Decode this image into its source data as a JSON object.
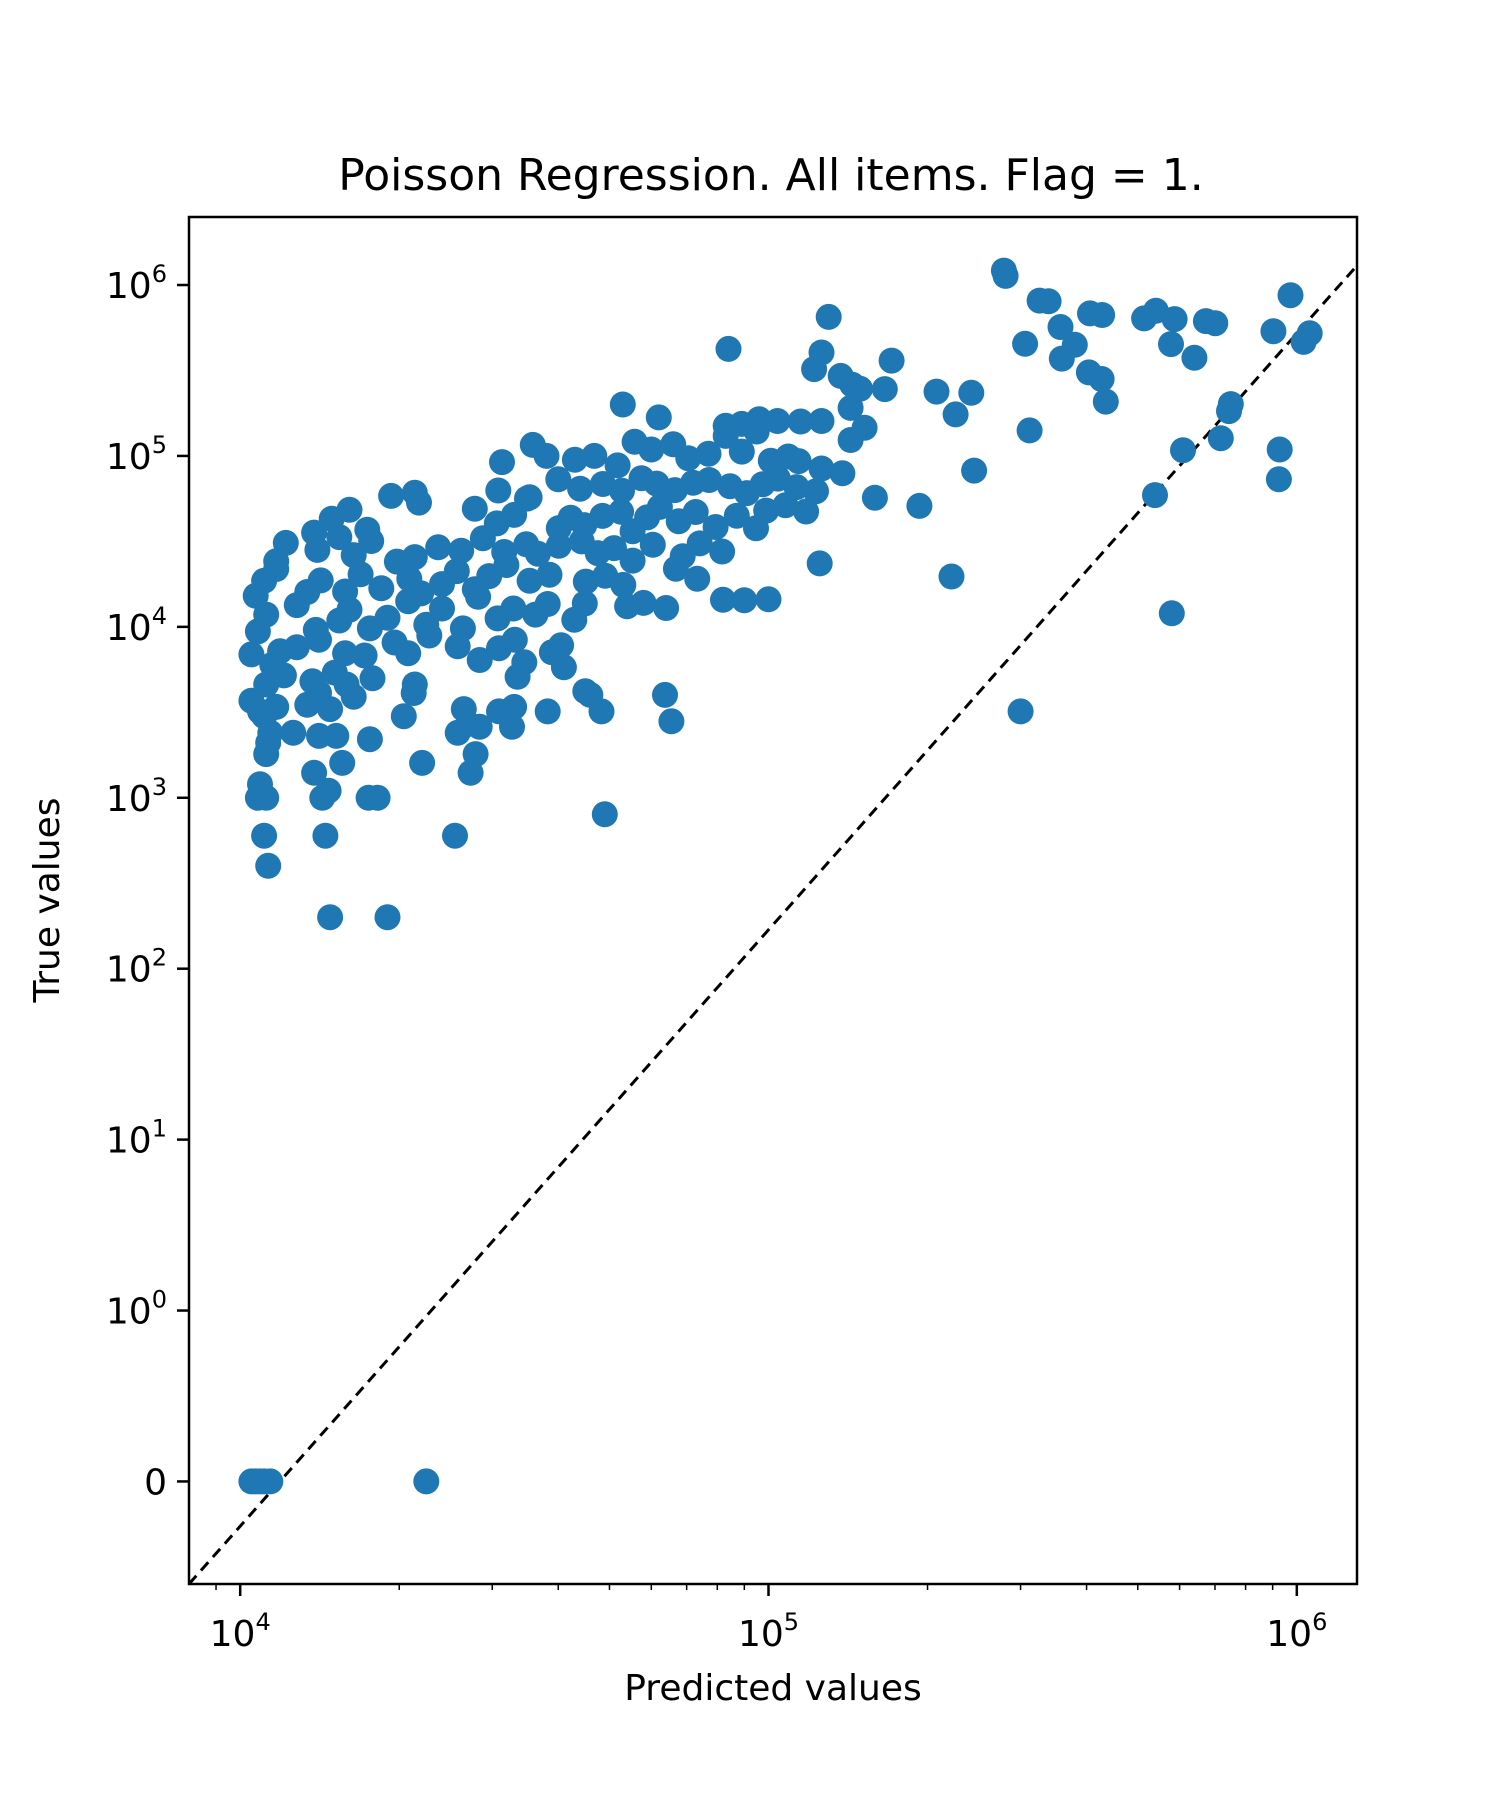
{
  "chart_data": {
    "type": "scatter",
    "title": "Poisson Regression. All items. Flag = 1.",
    "xlabel": "Predicted values",
    "ylabel": "True values",
    "xscale": "log",
    "yscale": "symlog",
    "xlim": [
      8000,
      1300000
    ],
    "ylim": [
      -0.6,
      2500000
    ],
    "x_ticks": [
      {
        "value": 10000,
        "base": "10",
        "exp": "4"
      },
      {
        "value": 100000,
        "base": "10",
        "exp": "5"
      },
      {
        "value": 1000000,
        "base": "10",
        "exp": "6"
      }
    ],
    "y_ticks": [
      {
        "value": 0,
        "base": "0",
        "exp": ""
      },
      {
        "value": 1,
        "base": "10",
        "exp": "0"
      },
      {
        "value": 10,
        "base": "10",
        "exp": "1"
      },
      {
        "value": 100,
        "base": "10",
        "exp": "2"
      },
      {
        "value": 1000,
        "base": "10",
        "exp": "3"
      },
      {
        "value": 10000,
        "base": "10",
        "exp": "4"
      },
      {
        "value": 100000,
        "base": "10",
        "exp": "5"
      },
      {
        "value": 1000000,
        "base": "10",
        "exp": "6"
      }
    ],
    "reference_line": {
      "style": "dashed",
      "color": "#000000",
      "description": "y = x"
    },
    "marker_color": "#1f77b4",
    "grid": false,
    "points": [
      [
        10500,
        0
      ],
      [
        10700,
        0
      ],
      [
        10900,
        0
      ],
      [
        11100,
        0
      ],
      [
        11400,
        0
      ],
      [
        22500,
        0
      ],
      [
        11300,
        400
      ],
      [
        14800,
        200
      ],
      [
        19000,
        200
      ],
      [
        11100,
        600
      ],
      [
        14500,
        600
      ],
      [
        25500,
        600
      ],
      [
        49000,
        800
      ],
      [
        10800,
        1000
      ],
      [
        10900,
        1200
      ],
      [
        11200,
        1000
      ],
      [
        14300,
        1000
      ],
      [
        14700,
        1100
      ],
      [
        17500,
        1000
      ],
      [
        18200,
        1000
      ],
      [
        13800,
        1400
      ],
      [
        15600,
        1600
      ],
      [
        22100,
        1600
      ],
      [
        27300,
        1400
      ],
      [
        27900,
        1800
      ],
      [
        11200,
        1800
      ],
      [
        11300,
        2100
      ],
      [
        11400,
        2400
      ],
      [
        12600,
        2400
      ],
      [
        14100,
        2300
      ],
      [
        15200,
        2300
      ],
      [
        17600,
        2200
      ],
      [
        20400,
        3000
      ],
      [
        25800,
        2400
      ],
      [
        27000,
        2700
      ],
      [
        11100,
        3000
      ],
      [
        10500,
        3700
      ],
      [
        10900,
        3200
      ],
      [
        11700,
        3400
      ],
      [
        13400,
        3500
      ],
      [
        14100,
        4100
      ],
      [
        14800,
        3300
      ],
      [
        16400,
        3900
      ],
      [
        21300,
        4100
      ],
      [
        26500,
        3300
      ],
      [
        28400,
        2600
      ],
      [
        30900,
        3200
      ],
      [
        32700,
        2600
      ],
      [
        33000,
        3400
      ],
      [
        38200,
        3200
      ],
      [
        48300,
        3200
      ],
      [
        65500,
        2800
      ],
      [
        63700,
        4000
      ],
      [
        300000,
        3200
      ],
      [
        11200,
        4600
      ],
      [
        12100,
        5200
      ],
      [
        13700,
        4800
      ],
      [
        15100,
        5400
      ],
      [
        15900,
        4600
      ],
      [
        17800,
        5000
      ],
      [
        21400,
        4600
      ],
      [
        28400,
        6400
      ],
      [
        33500,
        5100
      ],
      [
        34500,
        6200
      ],
      [
        41000,
        5800
      ],
      [
        45000,
        4200
      ],
      [
        46000,
        4000
      ],
      [
        10500,
        6900
      ],
      [
        11500,
        6000
      ],
      [
        11900,
        7200
      ],
      [
        12800,
        7600
      ],
      [
        14100,
        8400
      ],
      [
        15800,
        7000
      ],
      [
        17200,
        6800
      ],
      [
        19600,
        8100
      ],
      [
        20800,
        7000
      ],
      [
        22800,
        8900
      ],
      [
        25800,
        7700
      ],
      [
        30900,
        7500
      ],
      [
        33100,
        8400
      ],
      [
        38900,
        7100
      ],
      [
        40500,
        7800
      ],
      [
        10800,
        9400
      ],
      [
        11200,
        11800
      ],
      [
        12800,
        13400
      ],
      [
        13900,
        9600
      ],
      [
        15400,
        10900
      ],
      [
        16100,
        12600
      ],
      [
        17600,
        9800
      ],
      [
        19000,
        11300
      ],
      [
        20800,
        14100
      ],
      [
        22500,
        10300
      ],
      [
        24100,
        12800
      ],
      [
        26400,
        9800
      ],
      [
        28200,
        15000
      ],
      [
        30700,
        11200
      ],
      [
        32900,
        12800
      ],
      [
        36200,
        11800
      ],
      [
        38200,
        13600
      ],
      [
        42900,
        11000
      ],
      [
        44900,
        13700
      ],
      [
        54000,
        13200
      ],
      [
        58000,
        13800
      ],
      [
        64000,
        12900
      ],
      [
        82000,
        14400
      ],
      [
        90000,
        14300
      ],
      [
        100000,
        14500
      ],
      [
        580000,
        12000
      ],
      [
        10700,
        15200
      ],
      [
        11100,
        18600
      ],
      [
        11700,
        21800
      ],
      [
        13400,
        16000
      ],
      [
        14200,
        18700
      ],
      [
        15800,
        16100
      ],
      [
        16900,
        20300
      ],
      [
        18500,
        16800
      ],
      [
        20900,
        19100
      ],
      [
        22000,
        15700
      ],
      [
        24100,
        17800
      ],
      [
        25700,
        21200
      ],
      [
        27800,
        16600
      ],
      [
        29600,
        19800
      ],
      [
        31900,
        23000
      ],
      [
        35300,
        18600
      ],
      [
        38500,
        20200
      ],
      [
        45100,
        18400
      ],
      [
        49100,
        19900
      ],
      [
        53100,
        17600
      ],
      [
        66800,
        21900
      ],
      [
        73300,
        19100
      ],
      [
        125000,
        23500
      ],
      [
        222000,
        19700
      ],
      [
        11700,
        24200
      ],
      [
        12200,
        31000
      ],
      [
        14000,
        28200
      ],
      [
        15400,
        33500
      ],
      [
        16400,
        26300
      ],
      [
        17700,
        31800
      ],
      [
        19800,
        24100
      ],
      [
        21400,
        25600
      ],
      [
        23700,
        29200
      ],
      [
        26200,
        27900
      ],
      [
        28800,
        33000
      ],
      [
        31600,
        27400
      ],
      [
        34800,
        30400
      ],
      [
        36600,
        26800
      ],
      [
        40100,
        29800
      ],
      [
        44300,
        31600
      ],
      [
        47500,
        27000
      ],
      [
        51000,
        28900
      ],
      [
        55300,
        24400
      ],
      [
        60400,
        30200
      ],
      [
        68800,
        25900
      ],
      [
        74100,
        30800
      ],
      [
        81700,
        27600
      ],
      [
        13800,
        35600
      ],
      [
        14900,
        42900
      ],
      [
        16100,
        48400
      ],
      [
        17400,
        37000
      ],
      [
        19300,
        58400
      ],
      [
        21400,
        60900
      ],
      [
        21800,
        53300
      ],
      [
        27800,
        49100
      ],
      [
        30600,
        40300
      ],
      [
        33000,
        45200
      ],
      [
        35300,
        57300
      ],
      [
        40100,
        37800
      ],
      [
        42200,
        43500
      ],
      [
        44800,
        39400
      ],
      [
        48500,
        44600
      ],
      [
        52600,
        47100
      ],
      [
        55300,
        36300
      ],
      [
        58900,
        43700
      ],
      [
        62300,
        50300
      ],
      [
        67600,
        41500
      ],
      [
        72800,
        47000
      ],
      [
        79400,
        38400
      ],
      [
        87100,
        44700
      ],
      [
        94700,
        37700
      ],
      [
        99000,
        47900
      ],
      [
        107700,
        51500
      ],
      [
        117800,
        47300
      ],
      [
        159000,
        57000
      ],
      [
        193000,
        51000
      ],
      [
        539000,
        59000
      ],
      [
        30800,
        62800
      ],
      [
        34900,
        56300
      ],
      [
        40000,
        73000
      ],
      [
        44000,
        64300
      ],
      [
        48600,
        68500
      ],
      [
        52800,
        62600
      ],
      [
        57500,
        74100
      ],
      [
        61400,
        68900
      ],
      [
        66500,
        63100
      ],
      [
        72000,
        69600
      ],
      [
        77200,
        72300
      ],
      [
        84600,
        66400
      ],
      [
        91000,
        60600
      ],
      [
        97500,
        68300
      ],
      [
        104200,
        73700
      ],
      [
        113000,
        65700
      ],
      [
        123000,
        62200
      ],
      [
        138000,
        79100
      ],
      [
        245000,
        82100
      ],
      [
        925000,
        73000
      ],
      [
        31300,
        92000
      ],
      [
        35800,
        116000
      ],
      [
        38000,
        100000
      ],
      [
        43000,
        95000
      ],
      [
        46800,
        100000
      ],
      [
        51800,
        88000
      ],
      [
        55800,
        121000
      ],
      [
        60000,
        109000
      ],
      [
        66000,
        117000
      ],
      [
        70500,
        97000
      ],
      [
        77000,
        103000
      ],
      [
        83000,
        131000
      ],
      [
        89000,
        106000
      ],
      [
        95000,
        139000
      ],
      [
        101000,
        93800
      ],
      [
        109000,
        99200
      ],
      [
        114000,
        93300
      ],
      [
        126000,
        84400
      ],
      [
        143000,
        124000
      ],
      [
        312000,
        141000
      ],
      [
        609000,
        108000
      ],
      [
        718000,
        127000
      ],
      [
        928000,
        109000
      ],
      [
        53000,
        200000
      ],
      [
        62000,
        168000
      ],
      [
        83000,
        150000
      ],
      [
        89000,
        154000
      ],
      [
        96000,
        164000
      ],
      [
        104000,
        160000
      ],
      [
        115000,
        159000
      ],
      [
        126000,
        160000
      ],
      [
        143000,
        191000
      ],
      [
        152000,
        146000
      ],
      [
        166000,
        246000
      ],
      [
        208000,
        238000
      ],
      [
        226000,
        175000
      ],
      [
        242000,
        234000
      ],
      [
        435000,
        208000
      ],
      [
        744000,
        183000
      ],
      [
        750000,
        201000
      ],
      [
        84000,
        423000
      ],
      [
        122000,
        322000
      ],
      [
        126000,
        403000
      ],
      [
        130000,
        651000
      ],
      [
        137000,
        294000
      ],
      [
        144000,
        261000
      ],
      [
        149000,
        247000
      ],
      [
        171000,
        361000
      ],
      [
        306000,
        453000
      ],
      [
        359000,
        371000
      ],
      [
        380000,
        447000
      ],
      [
        404000,
        308000
      ],
      [
        427000,
        282000
      ],
      [
        640000,
        375000
      ],
      [
        578000,
        451000
      ],
      [
        281000,
        1130000
      ],
      [
        279000,
        1214000
      ],
      [
        326000,
        811000
      ],
      [
        339000,
        803000
      ],
      [
        357000,
        568000
      ],
      [
        406000,
        682000
      ],
      [
        428000,
        668000
      ],
      [
        514000,
        638000
      ],
      [
        541000,
        707000
      ],
      [
        587000,
        632000
      ],
      [
        673000,
        615000
      ],
      [
        701000,
        598000
      ],
      [
        903000,
        537000
      ],
      [
        973000,
        872000
      ],
      [
        1030000,
        465000
      ],
      [
        1058000,
        522000
      ]
    ]
  }
}
